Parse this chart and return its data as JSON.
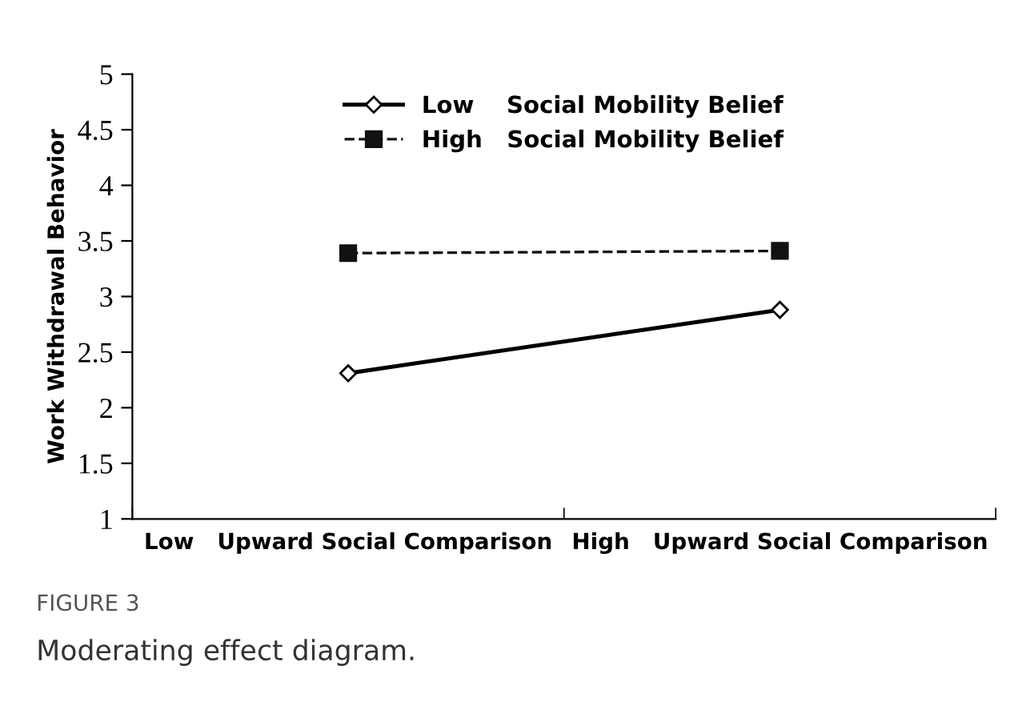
{
  "chart_data": {
    "type": "line",
    "ylabel": "Work Withdrawal Behavior",
    "categories": [
      "Low   Upward Social Comparison",
      "High   Upward Social Comparison"
    ],
    "series": [
      {
        "name": "Low    Social Mobility Belief",
        "color": "#000000",
        "values": [
          2.31,
          2.88
        ],
        "marker": "diamond",
        "line_style": "solid"
      },
      {
        "name": "High   Social Mobility Belief",
        "color": "#111111",
        "values": [
          3.39,
          3.41
        ],
        "marker": "square",
        "line_style": "dashed"
      }
    ],
    "ylim": [
      1,
      5
    ],
    "yticks": [
      1,
      1.5,
      2,
      2.5,
      3,
      3.5,
      4,
      4.5,
      5
    ],
    "grid": false,
    "legend": "top",
    "annotations": [
      "FIGURE 3",
      "Moderating effect diagram."
    ]
  }
}
